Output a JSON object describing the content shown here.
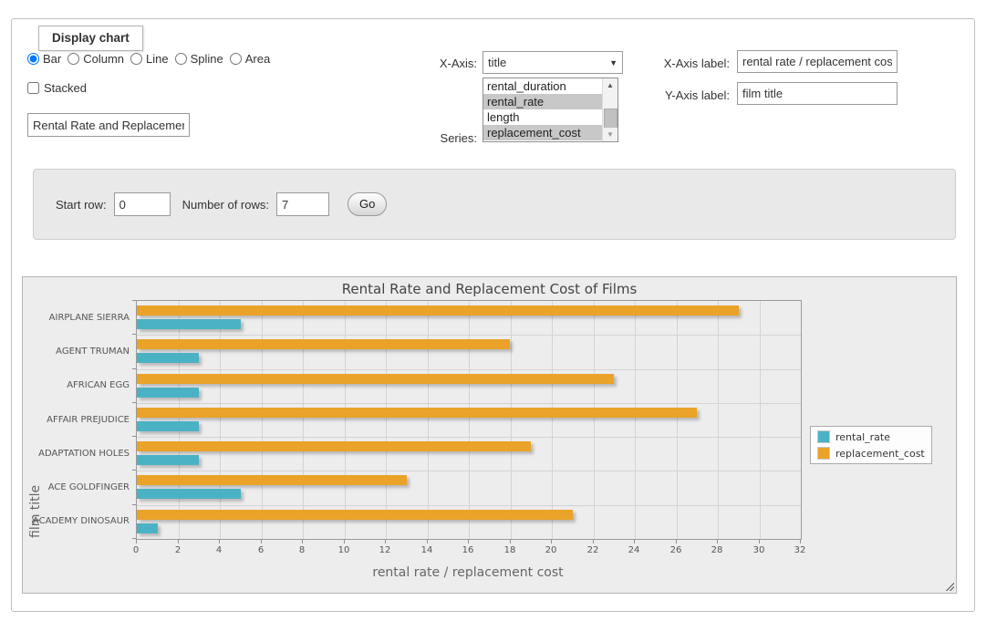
{
  "panel": {
    "legend": "Display chart"
  },
  "chart_type_options": [
    {
      "label": "Bar",
      "checked": true
    },
    {
      "label": "Column",
      "checked": false
    },
    {
      "label": "Line",
      "checked": false
    },
    {
      "label": "Spline",
      "checked": false
    },
    {
      "label": "Area",
      "checked": false
    }
  ],
  "stacked": {
    "label": "Stacked",
    "checked": false
  },
  "title_input": {
    "value": "Rental Rate and Replacement Cost of Films"
  },
  "x_axis": {
    "label": "X-Axis:",
    "selected": "title"
  },
  "series_select": {
    "label": "Series:",
    "visible_options": [
      {
        "label": "rental_duration",
        "selected": false
      },
      {
        "label": "rental_rate",
        "selected": true
      },
      {
        "label": "length",
        "selected": false
      },
      {
        "label": "replacement_cost",
        "selected": true
      }
    ]
  },
  "x_axis_label": {
    "label": "X-Axis label:",
    "value": "rental rate / replacement cost"
  },
  "y_axis_label": {
    "label": "Y-Axis label:",
    "value": "film title"
  },
  "row_controls": {
    "start_row_label": "Start row:",
    "start_row_value": "0",
    "num_rows_label": "Number of rows:",
    "num_rows_value": "7",
    "go_label": "Go"
  },
  "chart_data": {
    "type": "bar",
    "orientation": "horizontal",
    "title": "Rental Rate and Replacement Cost of Films",
    "categories": [
      "AIRPLANE SIERRA",
      "AGENT TRUMAN",
      "AFRICAN EGG",
      "AFFAIR PREJUDICE",
      "ADAPTATION HOLES",
      "ACE GOLDFINGER",
      "ACADEMY DINOSAUR"
    ],
    "series": [
      {
        "name": "rental_rate",
        "color": "#4bb2c5",
        "values": [
          4.99,
          2.99,
          2.99,
          2.99,
          2.99,
          4.99,
          0.99
        ]
      },
      {
        "name": "replacement_cost",
        "color": "#eaa228",
        "values": [
          28.99,
          17.99,
          22.99,
          26.99,
          18.99,
          12.99,
          20.99
        ]
      }
    ],
    "bar_order_in_group": [
      "replacement_cost",
      "rental_rate"
    ],
    "xlabel": "rental rate / replacement cost",
    "ylabel": "film title",
    "xlim": [
      0,
      32
    ],
    "x_tick_step": 2,
    "grid": true,
    "legend_position": "right"
  }
}
